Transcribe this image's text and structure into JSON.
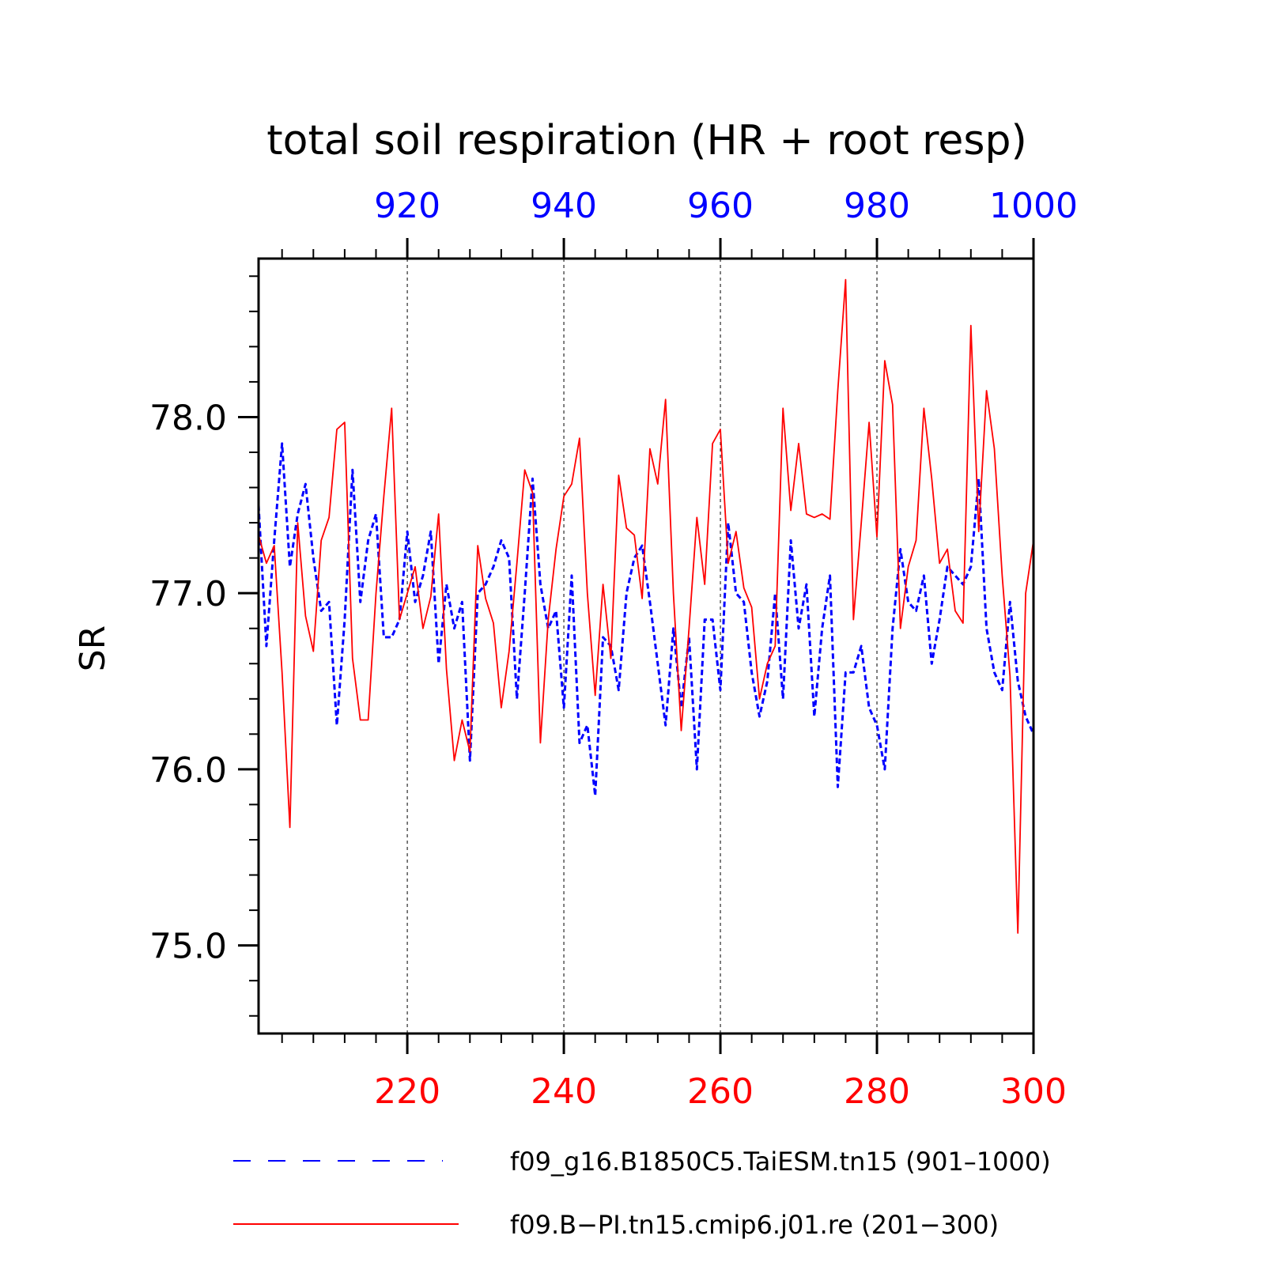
{
  "chart_data": {
    "type": "line",
    "title": "total soil respiration (HR + root resp)",
    "ylabel": "SR",
    "ylim": [
      74.5,
      78.9
    ],
    "yticks": [
      75.0,
      76.0,
      77.0,
      78.0
    ],
    "ytick_labels": [
      "75.0",
      "76.0",
      "77.0",
      "78.0"
    ],
    "grid": "vertical dashed lines at major x ticks",
    "top_axis": {
      "color": "#0000ff",
      "range": [
        901,
        1000
      ],
      "ticks": [
        920,
        940,
        960,
        980,
        1000
      ],
      "tick_labels": [
        "920",
        "940",
        "960",
        "980",
        "1000"
      ]
    },
    "bottom_axis": {
      "color": "#ff0000",
      "range": [
        201,
        300
      ],
      "ticks": [
        220,
        240,
        260,
        280,
        300
      ],
      "tick_labels": [
        "220",
        "240",
        "260",
        "280",
        "300"
      ]
    },
    "legend_position": "bottom",
    "series": [
      {
        "name": "f09_g16.B1850C5.TaiESM.tn15 (901–1000)",
        "axis": "top",
        "color": "#0000ff",
        "style": "dashed",
        "x_start": 901,
        "values": [
          77.5,
          76.7,
          77.3,
          77.85,
          77.15,
          77.45,
          77.62,
          77.2,
          76.9,
          76.95,
          76.25,
          76.85,
          77.7,
          76.95,
          77.3,
          77.45,
          76.75,
          76.75,
          76.85,
          77.35,
          76.95,
          77.1,
          77.35,
          76.6,
          77.05,
          76.8,
          76.95,
          76.05,
          77.0,
          77.05,
          77.15,
          77.3,
          77.2,
          76.4,
          77.0,
          77.65,
          77.05,
          76.8,
          76.9,
          76.35,
          77.1,
          76.15,
          76.25,
          75.85,
          76.75,
          76.7,
          76.45,
          77.0,
          77.2,
          77.27,
          76.95,
          76.6,
          76.25,
          76.8,
          76.35,
          76.75,
          76.0,
          76.85,
          76.85,
          76.45,
          77.4,
          77.0,
          76.95,
          76.55,
          76.3,
          76.5,
          77.0,
          76.4,
          77.3,
          76.8,
          77.05,
          76.3,
          76.8,
          77.1,
          75.9,
          76.55,
          76.55,
          76.7,
          76.35,
          76.25,
          76.0,
          76.8,
          77.25,
          76.95,
          76.9,
          77.1,
          76.6,
          76.85,
          77.15,
          77.1,
          77.05,
          77.15,
          77.65,
          76.8,
          76.55,
          76.45,
          76.95,
          76.5,
          76.3,
          76.2
        ]
      },
      {
        "name": "f09.B−PI.tn15.cmip6.j01.re (201−300)",
        "axis": "bottom",
        "color": "#ff0000",
        "style": "solid",
        "x_start": 201,
        "values": [
          77.33,
          77.17,
          77.27,
          76.55,
          75.67,
          77.4,
          76.87,
          76.67,
          77.3,
          77.43,
          77.93,
          77.97,
          76.63,
          76.28,
          76.28,
          77.0,
          77.55,
          78.05,
          76.85,
          77.0,
          77.15,
          76.8,
          76.98,
          77.45,
          76.57,
          76.05,
          76.28,
          76.1,
          77.27,
          76.97,
          76.83,
          76.35,
          76.67,
          77.17,
          77.7,
          77.57,
          76.15,
          76.85,
          77.25,
          77.55,
          77.62,
          77.88,
          77.0,
          76.42,
          77.05,
          76.63,
          77.67,
          77.37,
          77.33,
          76.97,
          77.82,
          77.62,
          78.1,
          77.0,
          76.22,
          76.8,
          77.43,
          77.05,
          77.85,
          77.93,
          77.17,
          77.35,
          77.03,
          76.92,
          76.4,
          76.6,
          76.7,
          78.05,
          77.47,
          77.85,
          77.45,
          77.43,
          77.45,
          77.42,
          78.15,
          78.78,
          76.85,
          77.4,
          77.97,
          77.32,
          78.32,
          78.07,
          76.8,
          77.15,
          77.3,
          78.05,
          77.65,
          77.17,
          77.25,
          76.9,
          76.83,
          78.52,
          77.35,
          78.15,
          77.82,
          77.1,
          76.53,
          75.07,
          77.0,
          77.3
        ]
      }
    ]
  }
}
